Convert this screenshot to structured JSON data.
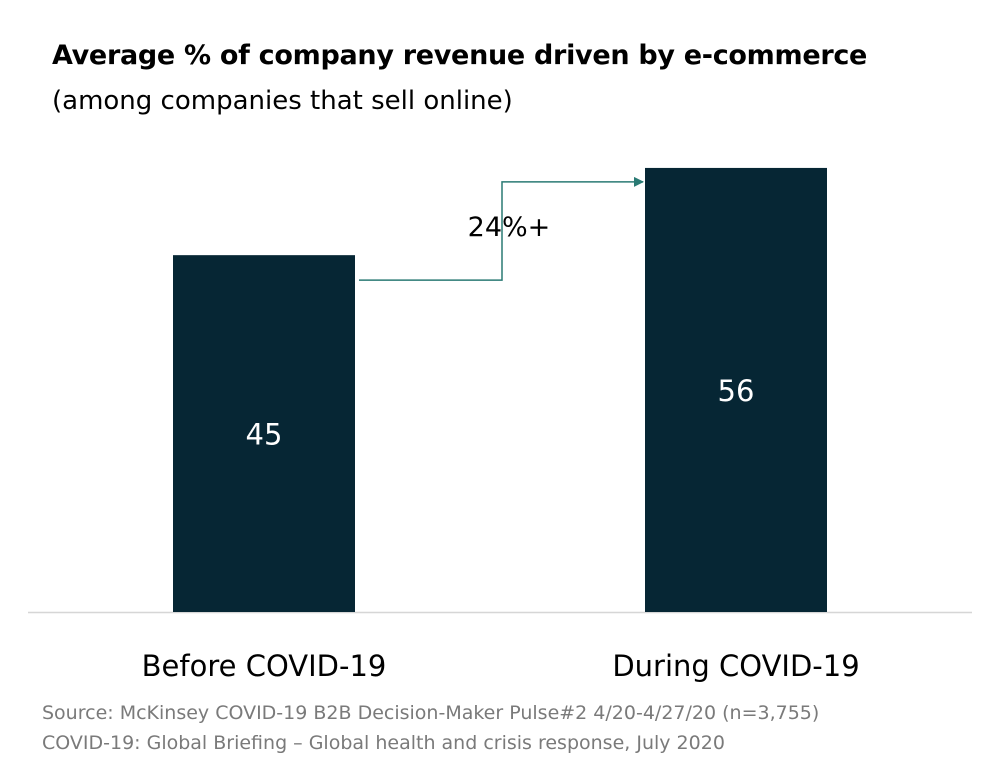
{
  "chart_data": {
    "type": "bar",
    "title": "Average % of company revenue driven by e-commerce",
    "subtitle": "(among companies that sell online)",
    "categories": [
      "Before COVID-19",
      "During COVID-19"
    ],
    "values": [
      45,
      56
    ],
    "data_labels": [
      "45",
      "56"
    ],
    "ylim": [
      0,
      57
    ],
    "grid": false,
    "annotation": {
      "text": "24%+",
      "from_category": "Before COVID-19",
      "to_category": "During COVID-19"
    },
    "colors": {
      "bar": "#062634",
      "arrow": "#2a7a74",
      "baseline": "#d6d6d6",
      "source_text": "#7a7a7a"
    }
  },
  "source": {
    "line1": "Source: McKinsey COVID-19 B2B Decision-Maker Pulse#2 4/20-4/27/20 (n=3,755)",
    "line2": "COVID-19: Global Briefing – Global health and crisis response, July 2020"
  }
}
